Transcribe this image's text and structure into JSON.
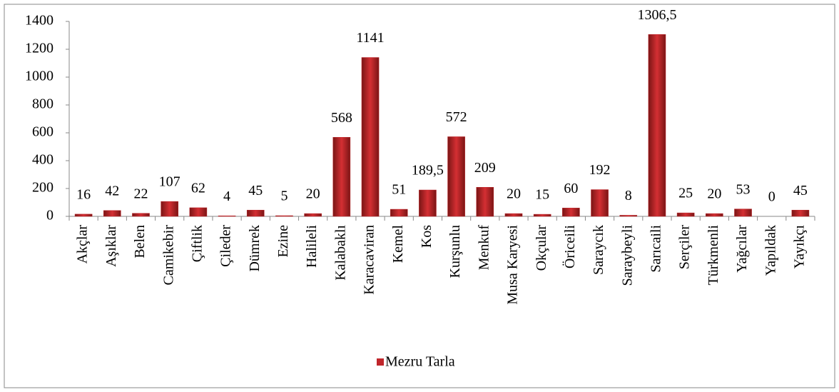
{
  "chart_data": {
    "type": "bar",
    "categories": [
      "Akçlar",
      "Aşıklar",
      "Belen",
      "Camikebir",
      "Çiftlik",
      "Çileder",
      "Dümrek",
      "Ezine",
      "Halileli",
      "Kalabaklı",
      "Karacaviran",
      "Kemel",
      "Kos",
      "Kurşunlu",
      "Menkuf",
      "Musa Karyesi",
      "Okçular",
      "Öriceili",
      "Saraycık",
      "Saraybeyli",
      "Sarıcaili",
      "Serçiler",
      "Türkmenli",
      "Yağcılar",
      "Yapıldak",
      "Yayıkçı"
    ],
    "series": [
      {
        "name": "Mezru Tarla",
        "color": "#c0262b",
        "values": [
          16,
          42,
          22,
          107,
          62,
          4,
          45,
          5,
          20,
          568,
          1141,
          51,
          189.5,
          572,
          209,
          20,
          15,
          60,
          192,
          8,
          1306.5,
          25,
          20,
          53,
          0,
          45
        ],
        "value_labels": [
          "16",
          "42",
          "22",
          "107",
          "62",
          "4",
          "45",
          "5",
          "20",
          "568",
          "1141",
          "51",
          "189,5",
          "572",
          "209",
          "20",
          "15",
          "60",
          "192",
          "8",
          "1306,5",
          "25",
          "20",
          "53",
          "0",
          "45"
        ]
      }
    ],
    "ylim": [
      0,
      1400
    ],
    "yticks": [
      0,
      200,
      400,
      600,
      800,
      1000,
      1200,
      1400
    ],
    "grid": false,
    "legend": "bottom"
  }
}
